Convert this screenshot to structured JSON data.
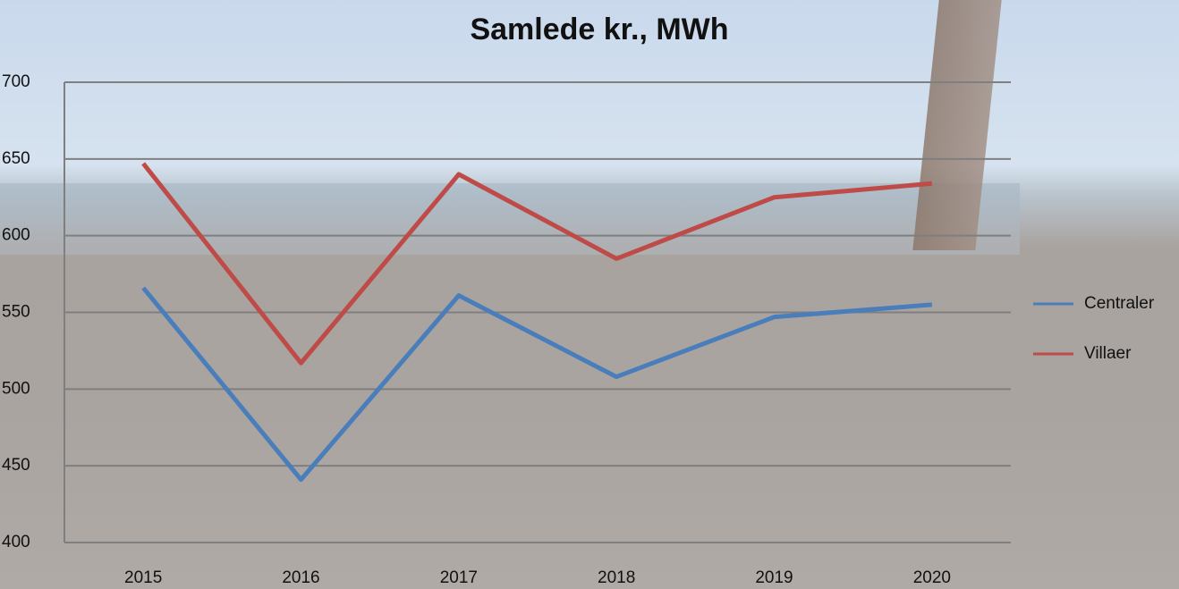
{
  "chart_data": {
    "type": "line",
    "title": "Samlede kr., MWh",
    "categories": [
      "2015",
      "2016",
      "2017",
      "2018",
      "2019",
      "2020"
    ],
    "series": [
      {
        "name": "Centraler",
        "color": "#4a7ebb",
        "values": [
          566,
          441,
          561,
          508,
          547,
          555
        ]
      },
      {
        "name": "Villaer",
        "color": "#be4b48",
        "values": [
          647,
          517,
          640,
          585,
          625,
          634
        ]
      }
    ],
    "ylim": [
      400,
      700
    ],
    "yticks": [
      400,
      450,
      500,
      550,
      600,
      650,
      700
    ],
    "grid": true,
    "legend": "right"
  }
}
